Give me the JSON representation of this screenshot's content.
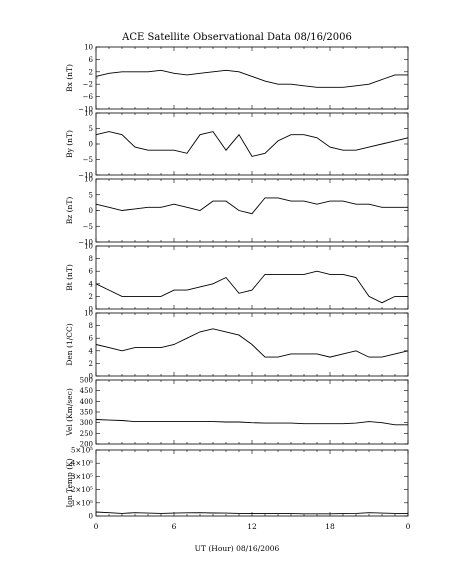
{
  "figure": {
    "title": "ACE Satellite Observational Data   08/16/2006",
    "xlabel": "UT (Hour)   08/16/2006",
    "x_tick_labels": [
      "0",
      "6",
      "12",
      "18",
      "0"
    ]
  },
  "chart_data": [
    {
      "type": "line",
      "ylabel": "Bx (nT)",
      "ylim": [
        -10,
        10
      ],
      "y_ticks": [
        -10,
        -6,
        -2,
        2,
        6,
        10
      ],
      "y_tick_labels": [
        "−10",
        "−6",
        "−2",
        "2",
        "6",
        "10"
      ],
      "x": [
        0,
        1,
        2,
        3,
        4,
        5,
        6,
        7,
        8,
        9,
        10,
        11,
        12,
        13,
        14,
        15,
        16,
        17,
        18,
        19,
        20,
        21,
        22,
        23,
        24
      ],
      "series": [
        {
          "values": [
            0.5,
            1.5,
            2,
            2,
            2,
            2.5,
            1.5,
            1,
            1.5,
            2,
            2.5,
            2,
            0.5,
            -1,
            -2,
            -2,
            -2.5,
            -3,
            -3,
            -3,
            -2.5,
            -2,
            -0.5,
            1,
            1
          ]
        }
      ]
    },
    {
      "type": "line",
      "ylabel": "By (nT)",
      "ylim": [
        -10,
        10
      ],
      "y_ticks": [
        -10,
        -5,
        0,
        5,
        10
      ],
      "y_tick_labels": [
        "−10",
        "−5",
        "0",
        "5",
        "10"
      ],
      "x": [
        0,
        1,
        2,
        3,
        4,
        5,
        6,
        7,
        8,
        9,
        10,
        11,
        12,
        13,
        14,
        15,
        16,
        17,
        18,
        19,
        20,
        21,
        22,
        23,
        24
      ],
      "series": [
        {
          "values": [
            3,
            4,
            3,
            -1,
            -2,
            -2,
            -2,
            -3,
            3,
            4,
            -2,
            3,
            -4,
            -3,
            1,
            3,
            3,
            2,
            -1,
            -2,
            -2,
            -1,
            0,
            1,
            2
          ]
        }
      ]
    },
    {
      "type": "line",
      "ylabel": "Bz (nT)",
      "ylim": [
        -10,
        10
      ],
      "y_ticks": [
        -10,
        -5,
        0,
        5,
        10
      ],
      "y_tick_labels": [
        "−10",
        "−5",
        "0",
        "5",
        "10"
      ],
      "x": [
        0,
        1,
        2,
        3,
        4,
        5,
        6,
        7,
        8,
        9,
        10,
        11,
        12,
        13,
        14,
        15,
        16,
        17,
        18,
        19,
        20,
        21,
        22,
        23,
        24
      ],
      "series": [
        {
          "values": [
            2,
            1,
            0,
            0.5,
            1,
            1,
            2,
            1,
            0,
            3,
            3,
            0,
            -1,
            4,
            4,
            3,
            3,
            2,
            3,
            3,
            2,
            2,
            1,
            1,
            1
          ]
        }
      ]
    },
    {
      "type": "line",
      "ylabel": "Bt (nT)",
      "ylim": [
        0,
        10
      ],
      "y_ticks": [
        0,
        2,
        4,
        6,
        8,
        10
      ],
      "y_tick_labels": [
        "0",
        "2",
        "4",
        "6",
        "8",
        "10"
      ],
      "x": [
        0,
        1,
        2,
        3,
        4,
        5,
        6,
        7,
        8,
        9,
        10,
        11,
        12,
        13,
        14,
        15,
        16,
        17,
        18,
        19,
        20,
        21,
        22,
        23,
        24
      ],
      "series": [
        {
          "values": [
            4,
            3,
            2,
            2,
            2,
            2,
            3,
            3,
            3.5,
            4,
            5,
            2.5,
            3,
            5.5,
            5.5,
            5.5,
            5.5,
            6,
            5.5,
            5.5,
            5,
            2,
            1,
            2,
            2
          ]
        }
      ]
    },
    {
      "type": "line",
      "ylabel": "Den (1/CC)",
      "ylim": [
        0,
        10
      ],
      "y_ticks": [
        0,
        2,
        4,
        6,
        8,
        10
      ],
      "y_tick_labels": [
        "0",
        "2",
        "4",
        "6",
        "8",
        "10"
      ],
      "x": [
        0,
        1,
        2,
        3,
        4,
        5,
        6,
        7,
        8,
        9,
        10,
        11,
        12,
        13,
        14,
        15,
        16,
        17,
        18,
        19,
        20,
        21,
        22,
        23,
        24
      ],
      "series": [
        {
          "values": [
            5,
            4.5,
            4,
            4.5,
            4.5,
            4.5,
            5,
            6,
            7,
            7.5,
            7,
            6.5,
            5,
            3,
            3,
            3.5,
            3.5,
            3.5,
            3,
            3.5,
            4,
            3,
            3,
            3.5,
            4
          ]
        }
      ]
    },
    {
      "type": "line",
      "ylabel": "Vel (Km/sec)",
      "ylim": [
        200,
        500
      ],
      "y_ticks": [
        200,
        250,
        300,
        350,
        400,
        450,
        500
      ],
      "y_tick_labels": [
        "200",
        "250",
        "300",
        "350",
        "400",
        "450",
        "500"
      ],
      "x": [
        0,
        1,
        2,
        3,
        4,
        5,
        6,
        7,
        8,
        9,
        10,
        11,
        12,
        13,
        14,
        15,
        16,
        17,
        18,
        19,
        20,
        21,
        22,
        23,
        24
      ],
      "series": [
        {
          "values": [
            315,
            312,
            310,
            305,
            305,
            305,
            305,
            305,
            305,
            305,
            303,
            303,
            300,
            298,
            298,
            298,
            295,
            295,
            295,
            295,
            298,
            305,
            300,
            290,
            290
          ]
        }
      ]
    },
    {
      "type": "line",
      "ylabel": "Ion Temp (K)",
      "ylim": [
        0,
        500000
      ],
      "y_ticks": [
        0,
        100000,
        200000,
        300000,
        400000,
        500000
      ],
      "y_tick_labels": [
        "0",
        "1×10⁵",
        "2×10⁵",
        "3×10⁵",
        "4×10⁵",
        "5×10⁵"
      ],
      "x": [
        0,
        1,
        2,
        3,
        4,
        5,
        6,
        7,
        8,
        9,
        10,
        11,
        12,
        13,
        14,
        15,
        16,
        17,
        18,
        19,
        20,
        21,
        22,
        23,
        24
      ],
      "series": [
        {
          "values": [
            30000,
            25000,
            20000,
            25000,
            22000,
            20000,
            22000,
            24000,
            25000,
            23000,
            22000,
            20000,
            20000,
            18000,
            18000,
            18000,
            17000,
            17000,
            17000,
            18000,
            20000,
            25000,
            22000,
            20000,
            20000
          ]
        }
      ]
    }
  ]
}
